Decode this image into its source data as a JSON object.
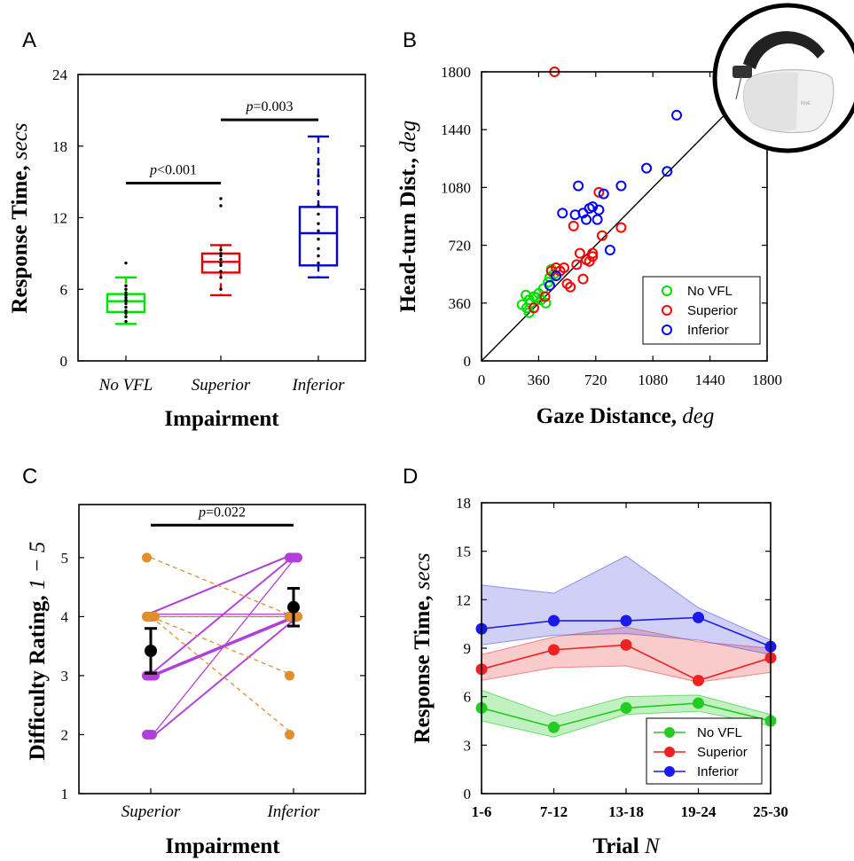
{
  "chart_data": [
    {
      "panel": "A",
      "type": "box",
      "xlabel": "Impairment",
      "ylabel": "Response Time,",
      "ylabel_unit": "secs",
      "ylim": [
        0,
        24
      ],
      "yticks": [
        "0",
        "6",
        "12",
        "18",
        "24"
      ],
      "categories": [
        "No VFL",
        "Superior",
        "Inferior"
      ],
      "colors": [
        "#00e000",
        "#e00000",
        "#0000d0"
      ],
      "boxes": [
        {
          "name": "No VFL",
          "whisker_low": 3.1,
          "q1": 4.1,
          "median": 5.0,
          "q3": 5.6,
          "whisker_high": 7.0,
          "points": [
            3.3,
            3.7,
            4.0,
            4.2,
            4.5,
            4.8,
            5.0,
            5.1,
            5.3,
            5.5,
            5.7,
            6.0,
            6.3,
            8.2
          ]
        },
        {
          "name": "Superior",
          "whisker_low": 5.5,
          "q1": 7.4,
          "median": 8.3,
          "q3": 9.0,
          "whisker_high": 9.7,
          "points": [
            6.0,
            7.0,
            7.5,
            8.0,
            8.2,
            8.5,
            8.8,
            9.0,
            9.3,
            13.0,
            13.6
          ]
        },
        {
          "name": "Inferior",
          "whisker_low": 7.0,
          "q1": 8.0,
          "median": 10.7,
          "q3": 12.9,
          "whisker_high": 18.8,
          "points": [
            8.2,
            8.8,
            9.4,
            10.2,
            10.9,
            11.5,
            12.3,
            13.0,
            14.0,
            15.5,
            16.5
          ]
        }
      ],
      "annotations": [
        {
          "from": "No VFL",
          "to": "Superior",
          "y": 14.9,
          "prefix": "p",
          "text": "<0.001"
        },
        {
          "from": "Superior",
          "to": "Inferior",
          "y": 20.2,
          "prefix": "p",
          "text": "=0.003"
        }
      ]
    },
    {
      "panel": "B",
      "type": "scatter",
      "xlabel": "Gaze Distance,",
      "xlabel_unit": "deg",
      "ylabel": "Head-turn Dist.,",
      "ylabel_unit": "deg",
      "xlim": [
        0,
        1800
      ],
      "ylim": [
        0,
        1800
      ],
      "xticks": [
        "0",
        "360",
        "720",
        "1080",
        "1440",
        "1800"
      ],
      "yticks": [
        "0",
        "360",
        "720",
        "1080",
        "1440",
        "1800"
      ],
      "identity_line": true,
      "legend_position": "bottom-right",
      "series": [
        {
          "name": "No VFL",
          "color": "#00dd00",
          "points": [
            [
              255,
              350
            ],
            [
              285,
              330
            ],
            [
              300,
              300
            ],
            [
              310,
              360
            ],
            [
              330,
              400
            ],
            [
              345,
              395
            ],
            [
              360,
              420
            ],
            [
              375,
              380
            ],
            [
              390,
              450
            ],
            [
              405,
              360
            ],
            [
              420,
              490
            ],
            [
              430,
              520
            ],
            [
              440,
              570
            ],
            [
              455,
              540
            ],
            [
              280,
              410
            ],
            [
              300,
              380
            ]
          ]
        },
        {
          "name": "Superior",
          "color": "#ff0000",
          "points": [
            [
              460,
              1800
            ],
            [
              330,
              330
            ],
            [
              400,
              400
            ],
            [
              440,
              560
            ],
            [
              470,
              580
            ],
            [
              495,
              560
            ],
            [
              520,
              580
            ],
            [
              540,
              480
            ],
            [
              560,
              460
            ],
            [
              580,
              840
            ],
            [
              600,
              600
            ],
            [
              620,
              670
            ],
            [
              640,
              510
            ],
            [
              660,
              630
            ],
            [
              680,
              620
            ],
            [
              700,
              650
            ],
            [
              740,
              1050
            ],
            [
              760,
              780
            ],
            [
              880,
              830
            ],
            [
              700,
              670
            ]
          ]
        },
        {
          "name": "Inferior",
          "color": "#0000ff",
          "points": [
            [
              430,
              470
            ],
            [
              470,
              530
            ],
            [
              510,
              920
            ],
            [
              590,
              910
            ],
            [
              610,
              1090
            ],
            [
              640,
              920
            ],
            [
              660,
              880
            ],
            [
              680,
              950
            ],
            [
              700,
              960
            ],
            [
              730,
              880
            ],
            [
              740,
              940
            ],
            [
              770,
              1040
            ],
            [
              810,
              690
            ],
            [
              880,
              1090
            ],
            [
              1040,
              1200
            ],
            [
              1170,
              1180
            ],
            [
              1230,
              1530
            ]
          ]
        }
      ]
    },
    {
      "panel": "C",
      "type": "paired",
      "xlabel": "Impairment",
      "ylabel": "Difficulty Rating,",
      "ylabel_unit": "1 − 5",
      "ylim": [
        1,
        5.9
      ],
      "yticks": [
        "1",
        "2",
        "3",
        "4",
        "5"
      ],
      "categories": [
        "Superior",
        "Inferior"
      ],
      "pairs_improved": [
        [
          4,
          5
        ],
        [
          4,
          5
        ],
        [
          4,
          4
        ],
        [
          3,
          5
        ],
        [
          3,
          5
        ],
        [
          3,
          4
        ],
        [
          3,
          4
        ],
        [
          3,
          4
        ],
        [
          3,
          4
        ],
        [
          2,
          5
        ],
        [
          2,
          4
        ],
        [
          2,
          4
        ]
      ],
      "pairs_declined": [
        [
          5,
          4
        ],
        [
          4,
          3
        ],
        [
          4,
          2
        ],
        [
          4,
          4
        ]
      ],
      "improved_color": "#b040d8",
      "declined_color": "#e08e30",
      "means": [
        {
          "category": "Superior",
          "mean": 3.42,
          "err": 0.38
        },
        {
          "category": "Inferior",
          "mean": 4.16,
          "err": 0.32
        }
      ],
      "reference_line": 4,
      "annotation": {
        "prefix": "p",
        "text": "=0.022",
        "y": 5.55
      }
    },
    {
      "panel": "D",
      "type": "line",
      "xlabel": "Trial",
      "xlabel_unit": "N",
      "ylabel": "Response Time,",
      "ylabel_unit": "secs",
      "categories": [
        "1-6",
        "7-12",
        "13-18",
        "19-24",
        "25-30"
      ],
      "ylim": [
        0,
        18
      ],
      "yticks": [
        "0",
        "3",
        "6",
        "9",
        "12",
        "15",
        "18"
      ],
      "legend_position": "bottom-right",
      "series": [
        {
          "name": "No VFL",
          "color": "#22cc22",
          "band": "#22cc22",
          "values": [
            5.3,
            4.1,
            5.3,
            5.6,
            4.5
          ],
          "lower": [
            4.5,
            3.5,
            4.9,
            5.1,
            4.2
          ],
          "upper": [
            6.4,
            4.8,
            6.0,
            6.1,
            4.9
          ]
        },
        {
          "name": "Superior",
          "color": "#ee2222",
          "band": "#ee4444",
          "values": [
            7.7,
            8.9,
            9.2,
            7.0,
            8.4
          ],
          "lower": [
            7.0,
            7.8,
            7.9,
            6.9,
            7.5
          ],
          "upper": [
            8.6,
            9.7,
            10.3,
            9.4,
            9.0
          ]
        },
        {
          "name": "Inferior",
          "color": "#1a1aee",
          "band": "#5555dd",
          "values": [
            10.2,
            10.7,
            10.7,
            10.9,
            9.1
          ],
          "lower": [
            9.2,
            9.8,
            9.9,
            9.5,
            8.6
          ],
          "upper": [
            12.9,
            12.4,
            14.7,
            11.5,
            9.5
          ]
        }
      ]
    }
  ]
}
